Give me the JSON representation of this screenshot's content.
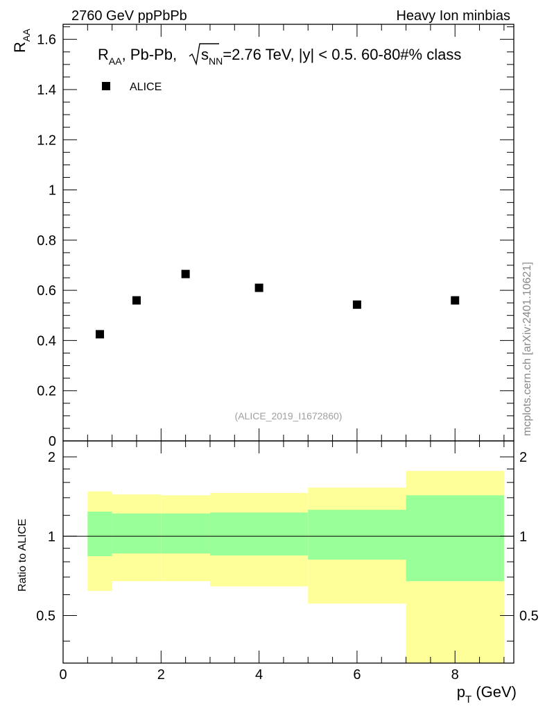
{
  "header": {
    "left": "2760 GeV ppPbPb",
    "right": "Heavy Ion minbias"
  },
  "watermark": "mcplots.cern.ch [arXiv:2401.10621]",
  "analysis_tag": "(ALICE_2019_I1672860)",
  "plot_title": {
    "r": "R",
    "aa": "AA",
    "mid": ", Pb-Pb, ",
    "sqrt_s": "s",
    "nn": "NN",
    "rest": "=2.76 TeV, |y| < 0.5. 60-80#% class"
  },
  "legend": {
    "label": "ALICE"
  },
  "axes": {
    "ylabel_main": "R",
    "ylabel_main_sub": "AA",
    "ylabel_ratio": "Ratio to ALICE",
    "xlabel": "p",
    "xlabel_sub": "T",
    "xlabel_unit": " (GeV)"
  },
  "colors": {
    "marker": "#000000",
    "band_outer": "#ffff99",
    "band_inner": "#99ff99",
    "reference_line": "#000000"
  },
  "chart_data": [
    {
      "type": "scatter",
      "title": "R_AA, Pb-Pb, sqrt(s_NN)=2.76 TeV, |y| < 0.5. 60-80#% class",
      "xlabel": "p_T (GeV)",
      "ylabel": "R_AA",
      "xlim": [
        0,
        9.2
      ],
      "ylim": [
        0,
        1.66
      ],
      "yticks": [
        "0",
        "0.2",
        "0.4",
        "0.6",
        "0.8",
        "1",
        "1.2",
        "1.4",
        "1.6"
      ],
      "ytick_values": [
        0,
        0.2,
        0.4,
        0.6,
        0.8,
        1,
        1.2,
        1.4,
        1.6
      ],
      "legend_position": "top-left",
      "series": [
        {
          "name": "ALICE",
          "x": [
            0.75,
            1.5,
            2.5,
            4,
            6,
            8
          ],
          "y": [
            0.425,
            0.56,
            0.665,
            0.61,
            0.543,
            0.56
          ]
        }
      ]
    },
    {
      "type": "area",
      "title": "",
      "xlabel": "p_T (GeV)",
      "ylabel": "Ratio to ALICE",
      "xlim": [
        0,
        9.2
      ],
      "ylim": [
        0.33,
        2.3
      ],
      "yscale": "log",
      "xticks": [
        "0",
        "2",
        "4",
        "6",
        "8"
      ],
      "xtick_values": [
        0,
        2,
        4,
        6,
        8
      ],
      "yticks": [
        "0.5",
        "1",
        "2"
      ],
      "ytick_values": [
        0.5,
        1,
        2
      ],
      "reference_line": 1,
      "bins": [
        {
          "x_low": 0.5,
          "x_high": 1,
          "outer_low": 0.62,
          "outer_high": 1.48,
          "inner_low": 0.84,
          "inner_high": 1.24
        },
        {
          "x_low": 1,
          "x_high": 2,
          "outer_low": 0.675,
          "outer_high": 1.44,
          "inner_low": 0.86,
          "inner_high": 1.22
        },
        {
          "x_low": 2,
          "x_high": 3,
          "outer_low": 0.675,
          "outer_high": 1.43,
          "inner_low": 0.86,
          "inner_high": 1.22
        },
        {
          "x_low": 3,
          "x_high": 5,
          "outer_low": 0.645,
          "outer_high": 1.46,
          "inner_low": 0.845,
          "inner_high": 1.23
        },
        {
          "x_low": 5,
          "x_high": 7,
          "outer_low": 0.555,
          "outer_high": 1.53,
          "inner_low": 0.815,
          "inner_high": 1.26
        },
        {
          "x_low": 7,
          "x_high": 9,
          "outer_low": 0.33,
          "outer_high": 1.77,
          "inner_low": 0.675,
          "inner_high": 1.43
        }
      ]
    }
  ]
}
